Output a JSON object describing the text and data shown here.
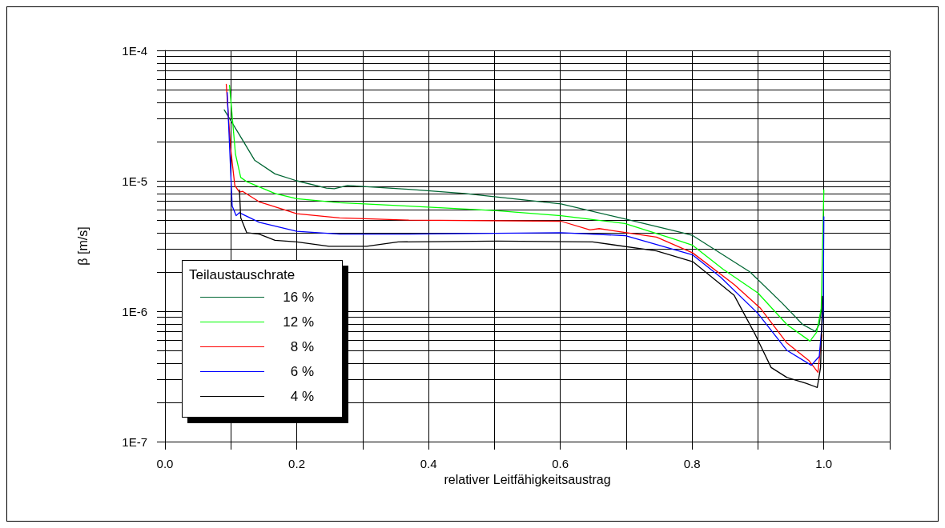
{
  "chart_data": {
    "type": "line",
    "xlabel": "relativer Leitfähigkeitsaustrag",
    "ylabel": "β [m/s]",
    "legend_title": "Teilaustauschrate",
    "log": "y",
    "grid": true,
    "legend": "bottom left",
    "marker": "none",
    "line_style": "solid",
    "xlim": [
      0,
      1.1
    ],
    "xticks": [
      {
        "value": 0,
        "label": "0.0"
      },
      {
        "value": 0.1,
        "label": null
      },
      0.2,
      {
        "value": 0.3,
        "label": null
      },
      0.4,
      {
        "value": 0.5,
        "label": null
      },
      0.6,
      {
        "value": 0.7,
        "label": null
      },
      0.8,
      {
        "value": 0.9,
        "label": null
      },
      {
        "value": 1,
        "label": "1.0"
      },
      {
        "value": 1.1,
        "label": null
      }
    ],
    "ylim": [
      1e-07,
      0.0001
    ],
    "yticks": [
      {
        "value": 1e-07,
        "label": "1E-7"
      },
      {
        "value": 2e-07,
        "label": null
      },
      {
        "value": 3e-07,
        "label": null
      },
      {
        "value": 4e-07,
        "label": null
      },
      {
        "value": 5e-07,
        "label": null
      },
      {
        "value": 6e-07,
        "label": null
      },
      {
        "value": 7e-07,
        "label": null
      },
      {
        "value": 8e-07,
        "label": null
      },
      {
        "value": 9e-07,
        "label": null
      },
      {
        "value": 1e-06,
        "label": "1E-6"
      },
      {
        "value": 2e-06,
        "label": null
      },
      {
        "value": 3e-06,
        "label": null
      },
      {
        "value": 4e-06,
        "label": null
      },
      {
        "value": 5e-06,
        "label": null
      },
      {
        "value": 6e-06,
        "label": null
      },
      {
        "value": 7e-06,
        "label": null
      },
      {
        "value": 8e-06,
        "label": null
      },
      {
        "value": 9e-06,
        "label": null
      },
      {
        "value": 1e-05,
        "label": "1E-5"
      },
      {
        "value": 2e-05,
        "label": null
      },
      {
        "value": 3e-05,
        "label": null
      },
      {
        "value": 4e-05,
        "label": null
      },
      {
        "value": 5e-05,
        "label": null
      },
      {
        "value": 6e-05,
        "label": null
      },
      {
        "value": 7e-05,
        "label": null
      },
      {
        "value": 8e-05,
        "label": null
      },
      {
        "value": 9e-05,
        "label": null
      },
      {
        "value": 0.0001,
        "label": "1E-4"
      }
    ],
    "series": [
      {
        "name": "16 %",
        "color": "#006633",
        "x": [
          0.09,
          0.112,
          0.136,
          0.167,
          0.2,
          0.245,
          0.257,
          0.277,
          0.37,
          0.455,
          0.601,
          0.698,
          0.785,
          0.801,
          0.888,
          0.937,
          0.968,
          0.987,
          0.993,
          0.999
        ],
        "values": [
          3.5e-05,
          2.3e-05,
          1.44e-05,
          1.13e-05,
          1e-05,
          8.8e-06,
          8.7e-06,
          9.2e-06,
          8.6e-06,
          8e-06,
          6.65e-06,
          5.1e-06,
          4e-06,
          3.8e-06,
          2e-06,
          1.15e-06,
          7.9e-07,
          7e-07,
          7.9e-07,
          1.3e-06
        ]
      },
      {
        "name": "12 %",
        "color": "#00ff00",
        "x": [
          0.098,
          0.107,
          0.115,
          0.125,
          0.167,
          0.2,
          0.265,
          0.37,
          0.504,
          0.601,
          0.698,
          0.771,
          0.801,
          0.847,
          0.9,
          0.944,
          0.979,
          0.989,
          0.996,
          1.0
        ],
        "values": [
          5.4e-05,
          1.6e-05,
          1.06e-05,
          9.8e-06,
          8e-06,
          7.3e-06,
          6.8e-06,
          6.4e-06,
          5.9e-06,
          5.4e-06,
          4.7e-06,
          3.6e-06,
          3.2e-06,
          2.1e-06,
          1.38e-06,
          7.9e-07,
          5.9e-07,
          6.9e-07,
          1.05e-06,
          8.5e-06
        ]
      },
      {
        "name": "8 %",
        "color": "#ff0000",
        "x": [
          0.093,
          0.0995,
          0.106,
          0.113,
          0.118,
          0.143,
          0.2,
          0.265,
          0.37,
          0.601,
          0.645,
          0.659,
          0.746,
          0.801,
          0.864,
          0.904,
          0.944,
          0.977,
          0.991,
          0.997
        ],
        "values": [
          5.5e-05,
          1.8e-05,
          9.2e-06,
          8.2e-06,
          8.3e-06,
          6.9e-06,
          5.6e-06,
          5.2e-06,
          5e-06,
          4.9e-06,
          4.2e-06,
          4.3e-06,
          3.7e-06,
          2.8e-06,
          1.6e-06,
          1.05e-06,
          5.7e-07,
          4.2e-07,
          3.4e-07,
          6.6e-07
        ]
      },
      {
        "name": "6 %",
        "color": "#0000ff",
        "x": [
          0.0945,
          0.102,
          0.108,
          0.113,
          0.143,
          0.2,
          0.265,
          0.37,
          0.601,
          0.698,
          0.801,
          0.843,
          0.9,
          0.944,
          0.981,
          0.993,
          0.999,
          1.0
        ],
        "values": [
          4.75e-05,
          6.4e-06,
          5.4e-06,
          5.7e-06,
          4.8e-06,
          4.1e-06,
          3.9e-06,
          3.9e-06,
          4e-06,
          3.8e-06,
          2.7e-06,
          1.83e-06,
          9.6e-07,
          5e-07,
          3.85e-07,
          4.5e-07,
          1e-06,
          5.3e-06
        ]
      },
      {
        "name": "4 %",
        "color": "#000000",
        "x": [
          0.113,
          0.115,
          0.124,
          0.143,
          0.167,
          0.2,
          0.249,
          0.306,
          0.354,
          0.504,
          0.649,
          0.746,
          0.801,
          0.864,
          0.896,
          0.92,
          0.944,
          0.973,
          0.99,
          0.995,
          0.998
        ],
        "values": [
          8.5e-06,
          5.2e-06,
          4e-06,
          3.9e-06,
          3.5e-06,
          3.4e-06,
          3.15e-06,
          3.15e-06,
          3.4e-06,
          3.45e-06,
          3.4e-06,
          2.9e-06,
          2.4e-06,
          1.32e-06,
          6.6e-07,
          3.7e-07,
          3.1e-07,
          2.8e-07,
          2.6e-07,
          3.7e-07,
          1.3e-06
        ]
      }
    ]
  }
}
